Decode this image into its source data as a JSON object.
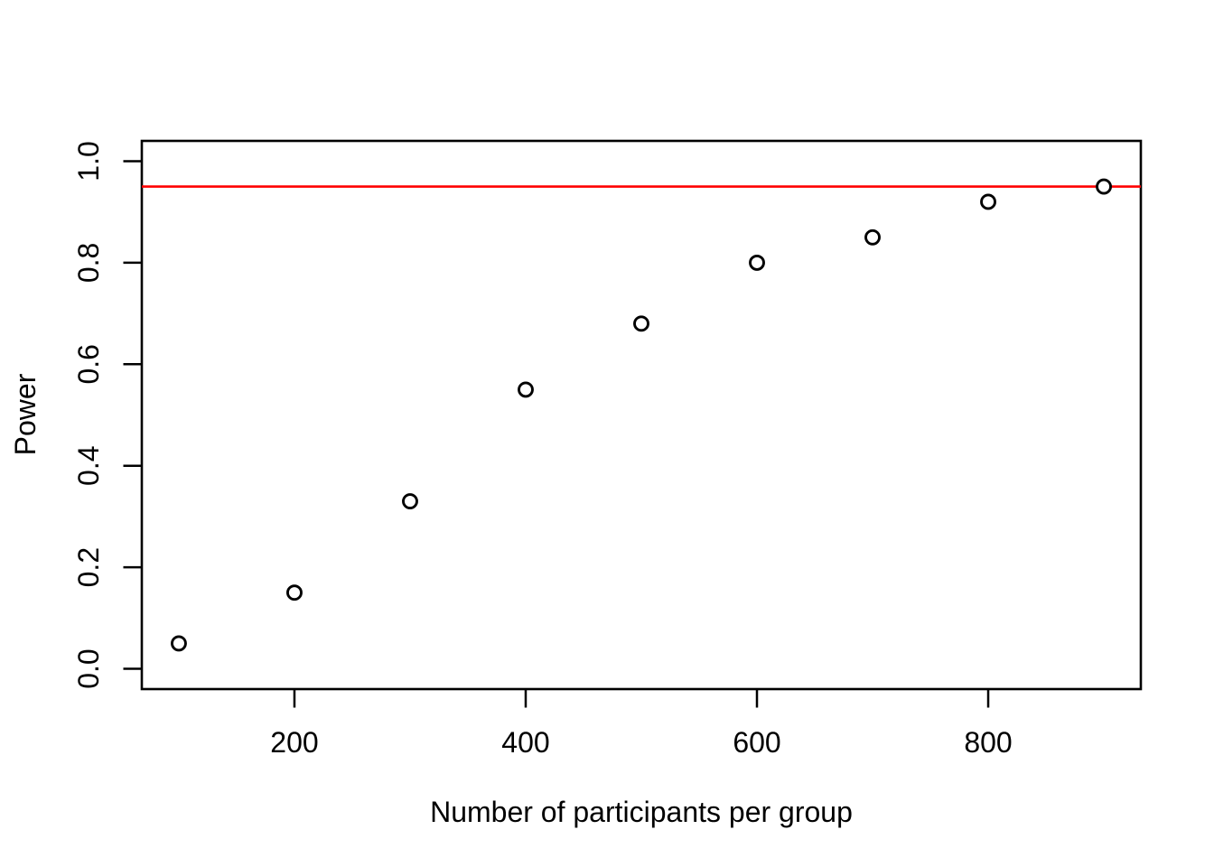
{
  "chart_data": {
    "type": "scatter",
    "title": "",
    "xlabel": "Number of participants per group",
    "ylabel": "Power",
    "x": [
      100,
      200,
      300,
      400,
      500,
      600,
      700,
      800,
      900
    ],
    "y": [
      0.05,
      0.15,
      0.33,
      0.55,
      0.68,
      0.8,
      0.85,
      0.92,
      0.95
    ],
    "x_tick_values": [
      200,
      400,
      600,
      800
    ],
    "x_tick_labels": [
      "200",
      "400",
      "600",
      "800"
    ],
    "y_tick_values": [
      0.0,
      0.2,
      0.4,
      0.6,
      0.8,
      1.0
    ],
    "y_tick_labels": [
      "0.0",
      "0.2",
      "0.4",
      "0.6",
      "0.8",
      "1.0"
    ],
    "xlim": [
      68,
      932
    ],
    "ylim": [
      -0.04,
      1.04
    ],
    "grid": "off",
    "legend": "none",
    "marker": "open-circle",
    "reference_line": {
      "y": 0.95
    },
    "colors": {
      "points": "#000000",
      "axis": "#000000",
      "text": "#000000",
      "reference_line": "#ff0000",
      "background": "#ffffff"
    }
  }
}
